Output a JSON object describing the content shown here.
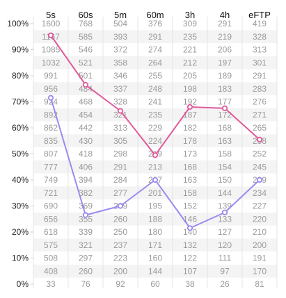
{
  "chart_data": {
    "type": "line",
    "columns": [
      "5s",
      "60s",
      "5m",
      "60m",
      "3h",
      "4h",
      "eFTP"
    ],
    "y_ticks": [
      "100%",
      "90%",
      "80%",
      "70%",
      "60%",
      "50%",
      "40%",
      "30%",
      "20%",
      "10%",
      "0%"
    ],
    "y_unit": "%",
    "ylim": [
      0,
      100
    ],
    "table": [
      [
        1600,
        768,
        504,
        376,
        309,
        291,
        419
      ],
      [
        1167,
        585,
        393,
        291,
        235,
        219,
        328
      ],
      [
        1085,
        546,
        372,
        274,
        221,
        206,
        313
      ],
      [
        1032,
        521,
        358,
        264,
        212,
        197,
        301
      ],
      [
        991,
        501,
        346,
        255,
        205,
        189,
        291
      ],
      [
        956,
        484,
        337,
        248,
        198,
        183,
        283
      ],
      [
        924,
        468,
        328,
        241,
        192,
        177,
        276
      ],
      [
        892,
        454,
        321,
        235,
        187,
        172,
        271
      ],
      [
        862,
        442,
        313,
        229,
        182,
        168,
        265
      ],
      [
        835,
        430,
        305,
        224,
        178,
        163,
        258
      ],
      [
        807,
        418,
        298,
        219,
        173,
        158,
        252
      ],
      [
        777,
        406,
        291,
        213,
        168,
        154,
        245
      ],
      [
        749,
        394,
        284,
        207,
        163,
        150,
        239
      ],
      [
        721,
        382,
        277,
        201,
        158,
        144,
        234
      ],
      [
        690,
        369,
        269,
        195,
        152,
        139,
        227
      ],
      [
        656,
        355,
        260,
        188,
        146,
        133,
        220
      ],
      [
        618,
        339,
        250,
        180,
        140,
        127,
        210
      ],
      [
        575,
        321,
        237,
        171,
        132,
        120,
        200
      ],
      [
        508,
        297,
        223,
        160,
        122,
        111,
        191
      ],
      [
        408,
        260,
        200,
        144,
        107,
        97,
        170
      ],
      [
        33,
        76,
        92,
        60,
        38,
        26,
        81
      ]
    ],
    "series": [
      {
        "color": "#e05a9a",
        "values": [
          95.5,
          76.5,
          66.5,
          49.5,
          68,
          67.5,
          55.5
        ]
      },
      {
        "color": "#9a8af0",
        "values": [
          71.5,
          26.5,
          30,
          40,
          21.5,
          27.5,
          40
        ]
      }
    ],
    "grid": true,
    "colors": {
      "stripe": "#f4f4f4",
      "grid": "#e4e4e4"
    }
  }
}
